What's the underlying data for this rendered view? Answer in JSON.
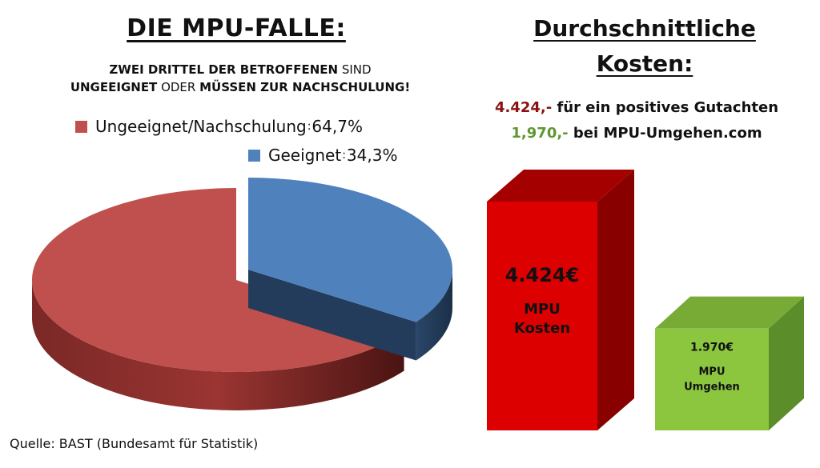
{
  "left": {
    "title": "DIE MPU-FALLE:",
    "subtitle": {
      "l1_a": "ZWEI DRITTEL DER BETROFFENEN",
      "l1_b": " SIND",
      "l2_a": "UNGEEIGNET",
      "l2_b": " ODER ",
      "l2_c": "MÜSSEN ZUR NACHSCHULUNG!"
    }
  },
  "right": {
    "title_line1": "Durchschnittliche",
    "title_line2": "Kosten:",
    "cost1_value": "4.424,-",
    "cost1_text": " für ein positives Gutachten",
    "cost2_value": "1,970,-",
    "cost2_text": " bei MPU-Umgehen.com"
  },
  "source": "Quelle: BAST  (Bundesamt für Statistik)",
  "colors": {
    "red_slice": "#c0504d",
    "blue_slice": "#4f81bd",
    "bar_red": "#dd0000",
    "bar_green": "#8cc63f",
    "text_red": "#8a1313",
    "text_green": "#5e9732"
  },
  "chart_data": [
    {
      "type": "pie",
      "title": "DIE MPU-FALLE:",
      "slices": [
        {
          "label": "Ungeeignet/Nachschulung",
          "value": 64.7,
          "value_label": "64,7%",
          "color": "#c0504d"
        },
        {
          "label": "Geeignet",
          "value": 34.3,
          "value_label": "34,3%",
          "color": "#4f81bd"
        }
      ],
      "legend": "top"
    },
    {
      "type": "bar",
      "title": "Durchschnittliche Kosten:",
      "categories": [
        "MPU Kosten",
        "MPU Umgehen"
      ],
      "values": [
        4424,
        1970
      ],
      "bars": [
        {
          "value_label": "4.424€",
          "line1": "MPU",
          "line2": "Kosten",
          "color": "#dd0000"
        },
        {
          "value_label": "1.970€",
          "line1": "MPU",
          "line2": "Umgehen",
          "color": "#8cc63f"
        }
      ]
    }
  ]
}
